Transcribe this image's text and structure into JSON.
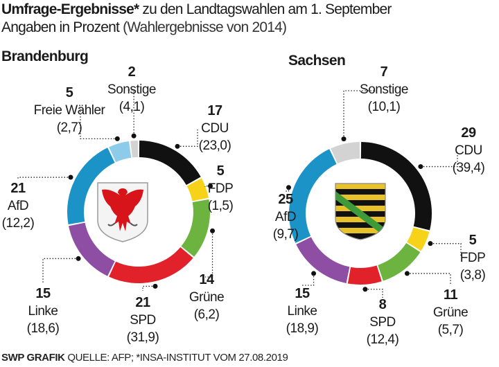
{
  "title_bold": "Umfrage-Ergebnisse*",
  "title_rest": "zu den Landtagswahlen am 1. September",
  "subtitle_bold": "Angaben in Prozent",
  "subtitle_rest": "(Wahlergebnisse von 2014)",
  "footer_brand": "SWP GRAFIK",
  "footer_source": "QUELLE: AFP; *INSA-INSTITUT VOM 27.08.2019",
  "colors": {
    "CDU": "#111111",
    "FDP": "#f6d319",
    "Grüne": "#6cb43f",
    "SPD": "#e2222b",
    "Linke": "#8d4ea3",
    "AfD": "#1b93c6",
    "Freie Wähler": "#8ccbea",
    "Sonstige": "#d3d3d3"
  },
  "chart_data": [
    {
      "type": "pie",
      "style": "donut",
      "title": "Brandenburg",
      "emblem": "brandenburg-eagle-coat-of-arms",
      "categories": [
        "CDU",
        "FDP",
        "Grüne",
        "SPD",
        "Linke",
        "AfD",
        "Freie Wähler",
        "Sonstige"
      ],
      "values": [
        17,
        5,
        14,
        21,
        15,
        21,
        5,
        2
      ],
      "previous_labels": [
        "(23,0)",
        "(1,5)",
        "(6,2)",
        "(31,9)",
        "(18,6)",
        "(12,2)",
        "(2,7)",
        "(4,1)"
      ],
      "previous": [
        23.0,
        1.5,
        6.2,
        31.9,
        18.6,
        12.2,
        2.7,
        4.1
      ]
    },
    {
      "type": "pie",
      "style": "donut",
      "title": "Sachsen",
      "emblem": "saxony-coat-of-arms",
      "categories": [
        "CDU",
        "FDP",
        "Grüne",
        "SPD",
        "Linke",
        "AfD",
        "Sonstige"
      ],
      "values": [
        29,
        5,
        11,
        8,
        15,
        25,
        7
      ],
      "previous_labels": [
        "(39,4)",
        "(3,8)",
        "(5,7)",
        "(12,4)",
        "(18,9)",
        "(9,7)",
        "(10,1)"
      ],
      "previous": [
        39.4,
        3.8,
        5.7,
        12.4,
        18.9,
        9.7,
        10.1
      ]
    }
  ]
}
